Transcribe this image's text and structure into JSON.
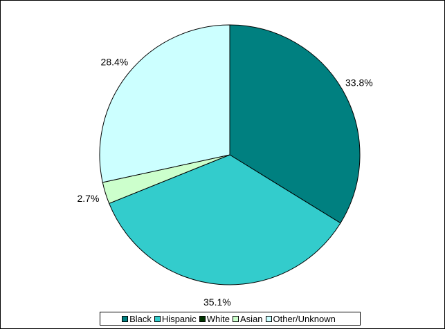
{
  "chart_data": {
    "type": "pie",
    "title": "",
    "start_angle_deg": 0,
    "direction": "clockwise",
    "legend_position": "bottom",
    "slices": [
      {
        "label": "Black",
        "value": 33.8,
        "display": "33.8%",
        "color": "#008080"
      },
      {
        "label": "Hispanic",
        "value": 35.1,
        "display": "35.1%",
        "color": "#33CCCC"
      },
      {
        "label": "White",
        "value": 0.0,
        "display": "",
        "color": "#003300"
      },
      {
        "label": "Asian",
        "value": 2.7,
        "display": "2.7%",
        "color": "#CCFFCC"
      },
      {
        "label": "Other/Unknown",
        "value": 28.4,
        "display": "28.4%",
        "color": "#CCFFFF"
      }
    ]
  },
  "legend": {
    "items": [
      {
        "label": "Black",
        "color": "#008080"
      },
      {
        "label": "Hispanic",
        "color": "#33CCCC"
      },
      {
        "label": "White",
        "color": "#003300"
      },
      {
        "label": "Asian",
        "color": "#CCFFCC"
      },
      {
        "label": "Other/Unknown",
        "color": "#CCFFFF"
      }
    ]
  }
}
